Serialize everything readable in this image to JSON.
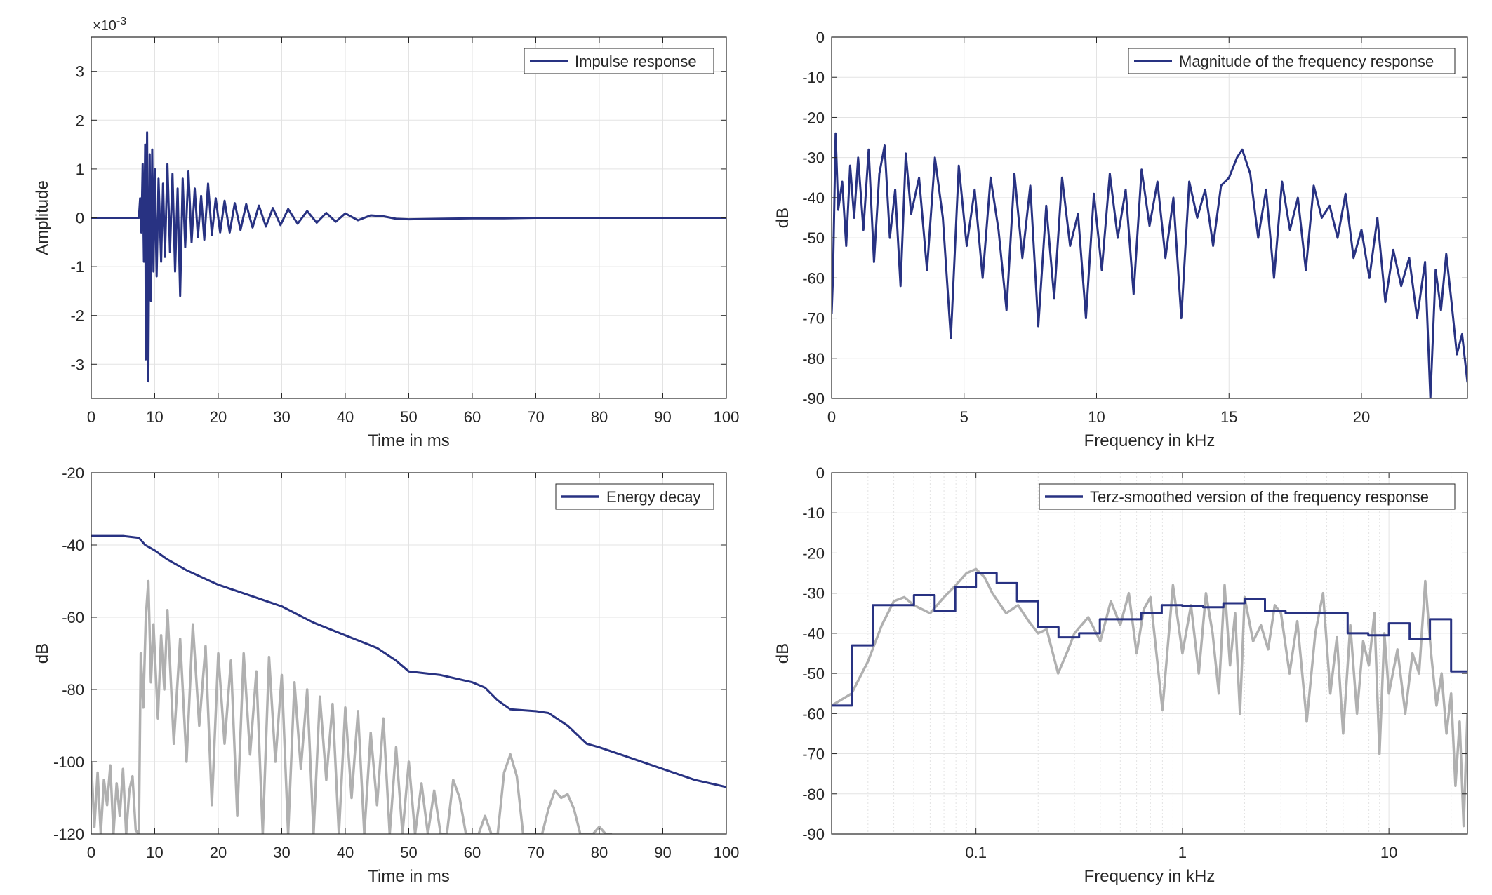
{
  "figure": {
    "background": "#ffffff"
  },
  "colors": {
    "primary": "#283282",
    "secondary": "#b0b0b0",
    "grid": "#e3e3e3",
    "axis": "#262626"
  },
  "chart_data": [
    {
      "id": "impulse",
      "type": "line",
      "xlabel": "Time in ms",
      "ylabel": "Amplitude",
      "xlim": [
        0,
        100
      ],
      "ylim": [
        -3.7,
        3.7
      ],
      "x_ticks": [
        0,
        10,
        20,
        30,
        40,
        50,
        60,
        70,
        80,
        90,
        100
      ],
      "x_tick_labels": [
        "0",
        "10",
        "20",
        "30",
        "40",
        "50",
        "60",
        "70",
        "80",
        "90",
        "100"
      ],
      "y_ticks": [
        -3,
        -2,
        -1,
        0,
        1,
        2,
        3
      ],
      "y_tick_labels": [
        "-3",
        "-2",
        "-1",
        "0",
        "1",
        "2",
        "3"
      ],
      "y_exponent_label": "×10",
      "y_exponent_power": "-3",
      "grid": true,
      "legend_position": "top-right",
      "series": [
        {
          "name": "Impulse response",
          "color": "#283282",
          "x": [
            0,
            7.5,
            7.7,
            7.9,
            8.1,
            8.3,
            8.5,
            8.6,
            8.8,
            9.0,
            9.2,
            9.4,
            9.6,
            9.8,
            10.0,
            10.3,
            10.6,
            11.0,
            11.3,
            11.6,
            12.0,
            12.4,
            12.8,
            13.2,
            13.6,
            14.0,
            14.4,
            14.8,
            15.3,
            15.8,
            16.3,
            16.8,
            17.3,
            17.8,
            18.4,
            19.0,
            19.6,
            20.3,
            21.0,
            21.8,
            22.6,
            23.5,
            24.4,
            25.4,
            26.4,
            27.5,
            28.6,
            29.8,
            31.0,
            32.5,
            34.0,
            35.5,
            37.0,
            38.5,
            40.0,
            42.0,
            44.0,
            46.0,
            48.0,
            50.0,
            55,
            60,
            65,
            70,
            75,
            80,
            85,
            90,
            95,
            100
          ],
          "y": [
            0,
            0,
            0.4,
            -0.3,
            1.1,
            -0.9,
            1.5,
            -2.9,
            1.75,
            -3.35,
            1.3,
            -1.7,
            1.4,
            -1.1,
            1.0,
            -1.2,
            0.8,
            -0.9,
            0.7,
            -0.8,
            1.1,
            -0.7,
            0.9,
            -1.1,
            0.6,
            -1.6,
            0.8,
            -0.6,
            0.95,
            -0.5,
            0.6,
            -0.4,
            0.45,
            -0.45,
            0.7,
            -0.35,
            0.4,
            -0.3,
            0.35,
            -0.3,
            0.3,
            -0.25,
            0.28,
            -0.2,
            0.25,
            -0.18,
            0.2,
            -0.15,
            0.18,
            -0.12,
            0.14,
            -0.1,
            0.1,
            -0.08,
            0.09,
            -0.05,
            0.05,
            0.03,
            -0.02,
            -0.03,
            -0.02,
            -0.01,
            -0.01,
            0,
            0,
            0,
            0,
            0,
            0,
            0
          ]
        }
      ]
    },
    {
      "id": "magnitude",
      "type": "line",
      "xlabel": "Frequency in kHz",
      "ylabel": "dB",
      "xlim": [
        0,
        24
      ],
      "ylim": [
        -90,
        0
      ],
      "x_ticks": [
        0,
        5,
        10,
        15,
        20
      ],
      "x_tick_labels": [
        "0",
        "5",
        "10",
        "15",
        "20"
      ],
      "y_ticks": [
        0,
        -10,
        -20,
        -30,
        -40,
        -50,
        -60,
        -70,
        -80,
        -90
      ],
      "y_tick_labels": [
        "0",
        "-10",
        "-20",
        "-30",
        "-40",
        "-50",
        "-60",
        "-70",
        "-80",
        "-90"
      ],
      "grid": true,
      "legend_position": "top-right",
      "series": [
        {
          "name": "Magnitude of the frequency response",
          "color": "#283282",
          "x": [
            0,
            0.05,
            0.15,
            0.25,
            0.4,
            0.55,
            0.7,
            0.85,
            1.0,
            1.2,
            1.4,
            1.6,
            1.8,
            2.0,
            2.2,
            2.4,
            2.6,
            2.8,
            3.0,
            3.3,
            3.6,
            3.9,
            4.2,
            4.5,
            4.8,
            5.1,
            5.4,
            5.7,
            6.0,
            6.3,
            6.6,
            6.9,
            7.2,
            7.5,
            7.8,
            8.1,
            8.4,
            8.7,
            9.0,
            9.3,
            9.6,
            9.9,
            10.2,
            10.5,
            10.8,
            11.1,
            11.4,
            11.7,
            12.0,
            12.3,
            12.6,
            12.9,
            13.2,
            13.5,
            13.8,
            14.1,
            14.4,
            14.7,
            15.0,
            15.3,
            15.5,
            15.8,
            16.1,
            16.4,
            16.7,
            17.0,
            17.3,
            17.6,
            17.9,
            18.2,
            18.5,
            18.8,
            19.1,
            19.4,
            19.7,
            20.0,
            20.3,
            20.6,
            20.9,
            21.2,
            21.5,
            21.8,
            22.1,
            22.4,
            22.6,
            22.8,
            23.0,
            23.2,
            23.4,
            23.6,
            23.8,
            24.0
          ],
          "y": [
            -69,
            -60,
            -24,
            -43,
            -36,
            -52,
            -32,
            -45,
            -30,
            -48,
            -28,
            -56,
            -34,
            -27,
            -50,
            -38,
            -62,
            -29,
            -44,
            -35,
            -58,
            -30,
            -45,
            -75,
            -32,
            -52,
            -38,
            -60,
            -35,
            -48,
            -68,
            -34,
            -55,
            -37,
            -72,
            -42,
            -65,
            -35,
            -52,
            -44,
            -70,
            -39,
            -58,
            -34,
            -50,
            -38,
            -64,
            -33,
            -47,
            -36,
            -55,
            -40,
            -70,
            -36,
            -45,
            -38,
            -52,
            -37,
            -35,
            -30,
            -28,
            -34,
            -50,
            -38,
            -60,
            -36,
            -48,
            -40,
            -58,
            -37,
            -45,
            -42,
            -50,
            -39,
            -55,
            -48,
            -60,
            -45,
            -66,
            -53,
            -62,
            -55,
            -70,
            -56,
            -90,
            -58,
            -68,
            -54,
            -66,
            -79,
            -74,
            -86
          ]
        }
      ]
    },
    {
      "id": "energy",
      "type": "line",
      "xlabel": "Time in ms",
      "ylabel": "dB",
      "xlim": [
        0,
        100
      ],
      "ylim": [
        -120,
        -20
      ],
      "x_ticks": [
        0,
        10,
        20,
        30,
        40,
        50,
        60,
        70,
        80,
        90,
        100
      ],
      "x_tick_labels": [
        "0",
        "10",
        "20",
        "30",
        "40",
        "50",
        "60",
        "70",
        "80",
        "90",
        "100"
      ],
      "y_ticks": [
        -20,
        -40,
        -60,
        -80,
        -100,
        -120
      ],
      "y_tick_labels": [
        "-20",
        "-40",
        "-60",
        "-80",
        "-100",
        "-120"
      ],
      "grid": true,
      "legend_position": "top-right",
      "series": [
        {
          "name": "",
          "color": "#b0b0b0",
          "x": [
            0,
            0.5,
            1,
            1.5,
            2,
            2.5,
            3,
            3.5,
            4,
            4.5,
            5,
            5.5,
            6,
            6.5,
            7,
            7.5,
            7.8,
            8.2,
            8.6,
            9.0,
            9.4,
            9.8,
            10.5,
            11,
            11.5,
            12,
            13,
            14,
            15,
            16,
            17,
            18,
            19,
            20,
            21,
            22,
            23,
            24,
            25,
            26,
            27,
            28,
            29,
            30,
            31,
            32,
            33,
            34,
            35,
            36,
            37,
            38,
            39,
            40,
            41,
            42,
            43,
            44,
            45,
            46,
            47,
            48,
            49,
            50,
            51,
            52,
            53,
            54,
            55,
            56,
            57,
            58,
            59,
            60,
            61,
            62,
            63,
            64,
            65,
            66,
            67,
            68,
            69,
            70,
            71,
            72,
            73,
            74,
            75,
            76,
            77,
            78,
            79,
            80,
            81,
            82
          ],
          "y": [
            -100,
            -118,
            -103,
            -120,
            -105,
            -112,
            -101,
            -120,
            -106,
            -115,
            -102,
            -120,
            -108,
            -104,
            -119,
            -120,
            -70,
            -85,
            -60,
            -50,
            -78,
            -62,
            -88,
            -65,
            -80,
            -58,
            -95,
            -66,
            -100,
            -62,
            -90,
            -68,
            -112,
            -70,
            -95,
            -72,
            -115,
            -70,
            -98,
            -75,
            -120,
            -71,
            -100,
            -76,
            -120,
            -78,
            -102,
            -80,
            -120,
            -82,
            -105,
            -84,
            -120,
            -85,
            -110,
            -86,
            -120,
            -92,
            -112,
            -88,
            -120,
            -96,
            -120,
            -100,
            -120,
            -106,
            -120,
            -108,
            -120,
            -120,
            -105,
            -110,
            -120,
            -120,
            -120,
            -115,
            -120,
            -120,
            -103,
            -98,
            -104,
            -120,
            -120,
            -120,
            -120,
            -113,
            -108,
            -110,
            -109,
            -113,
            -120,
            -120,
            -120,
            -118,
            -120,
            -120
          ]
        },
        {
          "name": "Energy decay",
          "color": "#283282",
          "x": [
            0,
            5,
            7.5,
            8.5,
            10,
            12,
            15,
            20,
            25,
            30,
            35,
            40,
            45,
            48,
            50,
            55,
            60,
            62,
            64,
            66,
            70,
            72,
            75,
            78,
            80,
            85,
            90,
            95,
            100
          ],
          "y": [
            -37.5,
            -37.5,
            -38,
            -40,
            -41.5,
            -44,
            -47,
            -51,
            -54,
            -57,
            -61.5,
            -65,
            -68.5,
            -72,
            -75,
            -76,
            -78,
            -79.5,
            -83,
            -85.5,
            -86,
            -86.5,
            -90,
            -95,
            -96,
            -99,
            -102,
            -105,
            -107
          ]
        }
      ]
    },
    {
      "id": "terz",
      "type": "line",
      "xlabel": "Frequency in kHz",
      "ylabel": "dB",
      "xscale": "log",
      "xlim": [
        0.02,
        24
      ],
      "ylim": [
        -90,
        0
      ],
      "x_ticks": [
        0.1,
        1,
        10
      ],
      "x_tick_labels": [
        "0.1",
        "1",
        "10"
      ],
      "y_ticks": [
        0,
        -10,
        -20,
        -30,
        -40,
        -50,
        -60,
        -70,
        -80,
        -90
      ],
      "y_tick_labels": [
        "0",
        "-10",
        "-20",
        "-30",
        "-40",
        "-50",
        "-60",
        "-70",
        "-80",
        "-90"
      ],
      "grid": true,
      "legend_position": "top-right",
      "series": [
        {
          "name": "",
          "color": "#b0b0b0",
          "x": [
            0.02,
            0.025,
            0.03,
            0.035,
            0.04,
            0.045,
            0.05,
            0.06,
            0.07,
            0.08,
            0.09,
            0.1,
            0.11,
            0.12,
            0.14,
            0.16,
            0.18,
            0.2,
            0.22,
            0.25,
            0.28,
            0.3,
            0.35,
            0.4,
            0.45,
            0.5,
            0.55,
            0.6,
            0.65,
            0.7,
            0.8,
            0.9,
            1.0,
            1.1,
            1.2,
            1.3,
            1.4,
            1.5,
            1.6,
            1.7,
            1.8,
            1.9,
            2.0,
            2.2,
            2.4,
            2.6,
            2.8,
            3.0,
            3.3,
            3.6,
            4.0,
            4.4,
            4.8,
            5.2,
            5.6,
            6.0,
            6.5,
            7.0,
            7.5,
            8.0,
            8.5,
            9.0,
            9.5,
            10,
            11,
            12,
            13,
            14,
            15,
            16,
            17,
            18,
            19,
            20,
            21,
            22,
            23,
            24
          ],
          "y": [
            -58,
            -55,
            -47,
            -38,
            -32,
            -31,
            -33,
            -35,
            -31,
            -28,
            -25,
            -24,
            -26,
            -30,
            -35,
            -33,
            -37,
            -40,
            -39,
            -50,
            -44,
            -40,
            -36,
            -42,
            -32,
            -38,
            -30,
            -45,
            -34,
            -31,
            -59,
            -28,
            -45,
            -33,
            -50,
            -30,
            -40,
            -55,
            -28,
            -48,
            -35,
            -60,
            -31,
            -42,
            -38,
            -44,
            -33,
            -35,
            -50,
            -37,
            -62,
            -40,
            -30,
            -55,
            -41,
            -65,
            -38,
            -60,
            -42,
            -48,
            -35,
            -70,
            -40,
            -55,
            -44,
            -60,
            -45,
            -50,
            -27,
            -45,
            -58,
            -50,
            -65,
            -55,
            -78,
            -62,
            -88,
            -60
          ]
        },
        {
          "name": "Terz-smoothed version of the frequency response",
          "color": "#283282",
          "step": true,
          "x": [
            0.02,
            0.0251,
            0.0316,
            0.0398,
            0.0501,
            0.0631,
            0.0794,
            0.1,
            0.126,
            0.158,
            0.2,
            0.251,
            0.316,
            0.398,
            0.501,
            0.631,
            0.794,
            1.0,
            1.26,
            1.58,
            2.0,
            2.51,
            3.16,
            3.98,
            5.01,
            6.31,
            7.94,
            10.0,
            12.6,
            15.8,
            20.0,
            24.0
          ],
          "y": [
            -58,
            -43,
            -33,
            -33,
            -30.5,
            -34.5,
            -28.5,
            -25,
            -27.5,
            -32,
            -38.5,
            -41,
            -40,
            -36.5,
            -36.5,
            -35,
            -33,
            -33.2,
            -33.5,
            -32.5,
            -31.5,
            -34.5,
            -35,
            -35,
            -35,
            -40,
            -40.5,
            -37.5,
            -41.5,
            -36.5,
            -49.5,
            -49.5
          ]
        }
      ]
    }
  ]
}
